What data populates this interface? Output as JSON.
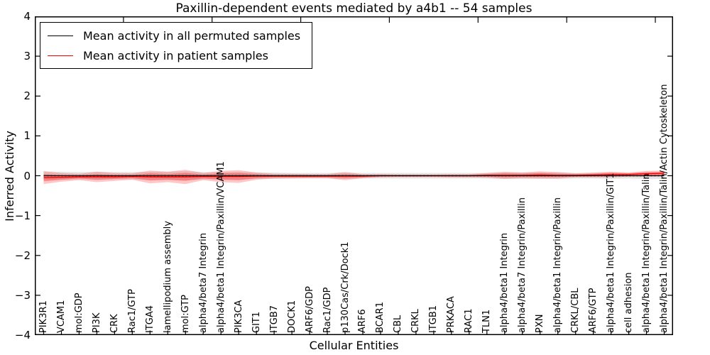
{
  "title": "Paxillin-dependent events mediated by a4b1 -- 54 samples",
  "legend": {
    "items": [
      {
        "label": "Mean activity in all permuted samples",
        "color": "#000000"
      },
      {
        "label": "Mean activity in patient samples",
        "color": "#ff0000"
      }
    ]
  },
  "colors": {
    "permuted_line": "#000000",
    "patient_line": "#ff0000",
    "permuted_band": "#999999",
    "patient_band": "#ff0000",
    "frame": "#000000"
  },
  "chart_data": {
    "type": "line",
    "title": "Paxillin-dependent events mediated by a4b1 -- 54 samples",
    "xlabel": "Cellular Entities",
    "ylabel": "Inferred Activity",
    "ylim": [
      -4,
      4
    ],
    "yticks": {
      "values": [
        4,
        3,
        2,
        1,
        0,
        -1,
        -2,
        -3,
        -4
      ],
      "labels": [
        "4",
        "3",
        "2",
        "1",
        "0",
        "−1",
        "−2",
        "−3",
        "−4"
      ]
    },
    "grid": false,
    "legend_position": "upper left",
    "categories": [
      "PIK3R1",
      "VCAM1",
      "mol:GDP",
      "PI3K",
      "CRK",
      "Rac1/GTP",
      "ITGA4",
      "lamellipodium assembly",
      "mol:GTP",
      "alpha4/beta7 Integrin",
      "alpha4/beta1 Integrin/Paxillin/VCAM1",
      "PIK3CA",
      "GIT1",
      "ITGB7",
      "DOCK1",
      "ARF6/GDP",
      "Rac1/GDP",
      "p130Cas/Crk/Dock1",
      "ARF6",
      "BCAR1",
      "CBL",
      "CRKL",
      "ITGB1",
      "PRKACA",
      "RAC1",
      "TLN1",
      "alpha4/beta1 Integrin",
      "alpha4/beta7 Integrin/Paxillin",
      "PXN",
      "alpha4/beta1 Integrin/Paxillin",
      "CRKL/CBL",
      "ARF6/GTP",
      "alpha4/beta1 Integrin/Paxillin/GIT1",
      "cell adhesion",
      "alpha4/beta1 Integrin/Paxillin/Talin",
      "alpha4/beta1 Integrin/Paxillin/Talin/Actin Cytoskeleton"
    ],
    "series": [
      {
        "name": "Mean activity in all permuted samples",
        "color": "#000000",
        "style": "solid",
        "values": [
          0,
          0,
          0,
          0,
          0,
          0,
          0,
          0,
          0,
          0,
          0,
          0,
          0,
          0,
          0,
          0,
          0,
          0,
          0,
          0,
          0,
          0,
          0,
          0,
          0,
          0,
          0,
          0,
          0,
          0,
          0,
          0,
          0,
          0,
          0,
          0
        ]
      },
      {
        "name": "Mean activity in patient samples",
        "color": "#ff0000",
        "style": "solid",
        "values": [
          -0.05,
          -0.04,
          -0.03,
          -0.03,
          -0.03,
          -0.02,
          -0.03,
          -0.03,
          -0.03,
          -0.02,
          -0.02,
          -0.02,
          -0.01,
          -0.01,
          -0.01,
          -0.01,
          -0.01,
          -0.01,
          -0.01,
          0,
          0,
          0,
          0,
          0,
          0,
          0.01,
          0.01,
          0.01,
          0.02,
          0.01,
          0.01,
          0.02,
          0.03,
          0.03,
          0.05,
          0.06
        ]
      },
      {
        "name": "zero reference",
        "color": "#000000",
        "style": "dotted",
        "values": [
          0,
          0,
          0,
          0,
          0,
          0,
          0,
          0,
          0,
          0,
          0,
          0,
          0,
          0,
          0,
          0,
          0,
          0,
          0,
          0,
          0,
          0,
          0,
          0,
          0,
          0,
          0,
          0,
          0,
          0,
          0,
          0,
          0,
          0,
          0,
          0
        ]
      }
    ],
    "bands": [
      {
        "name": "permuted sample range",
        "center_series": 0,
        "color": "#999999",
        "opacity": 0.25,
        "half_widths": [
          0.11,
          0.1,
          0.09,
          0.1,
          0.09,
          0.09,
          0.1,
          0.1,
          0.11,
          0.09,
          0.09,
          0.1,
          0.08,
          0.08,
          0.07,
          0.07,
          0.07,
          0.08,
          0.07,
          0.07,
          0.07,
          0.07,
          0.07,
          0.07,
          0.07,
          0.07,
          0.08,
          0.08,
          0.08,
          0.08,
          0.07,
          0.07,
          0.08,
          0.07,
          0.08,
          0.08
        ]
      },
      {
        "name": "patient sample range (outer)",
        "center_series": 1,
        "color": "#ff0000",
        "opacity": 0.22,
        "half_widths": [
          0.16,
          0.11,
          0.08,
          0.13,
          0.1,
          0.08,
          0.16,
          0.13,
          0.18,
          0.09,
          0.14,
          0.16,
          0.09,
          0.06,
          0.06,
          0.05,
          0.05,
          0.1,
          0.05,
          0.04,
          0.03,
          0.03,
          0.03,
          0.04,
          0.04,
          0.06,
          0.09,
          0.07,
          0.09,
          0.08,
          0.05,
          0.06,
          0.07,
          0.05,
          0.07,
          0.07
        ]
      },
      {
        "name": "patient sample range (inner)",
        "center_series": 1,
        "color": "#ff0000",
        "opacity": 0.28,
        "half_widths": [
          0.09,
          0.06,
          0.04,
          0.07,
          0.05,
          0.04,
          0.09,
          0.07,
          0.1,
          0.05,
          0.08,
          0.09,
          0.05,
          0.03,
          0.03,
          0.03,
          0.03,
          0.05,
          0.03,
          0.02,
          0.02,
          0.02,
          0.02,
          0.02,
          0.02,
          0.03,
          0.05,
          0.04,
          0.05,
          0.04,
          0.03,
          0.03,
          0.04,
          0.03,
          0.04,
          0.04
        ]
      }
    ],
    "top_tick_values": [
      5,
      10,
      15,
      20,
      25,
      30,
      35
    ]
  }
}
